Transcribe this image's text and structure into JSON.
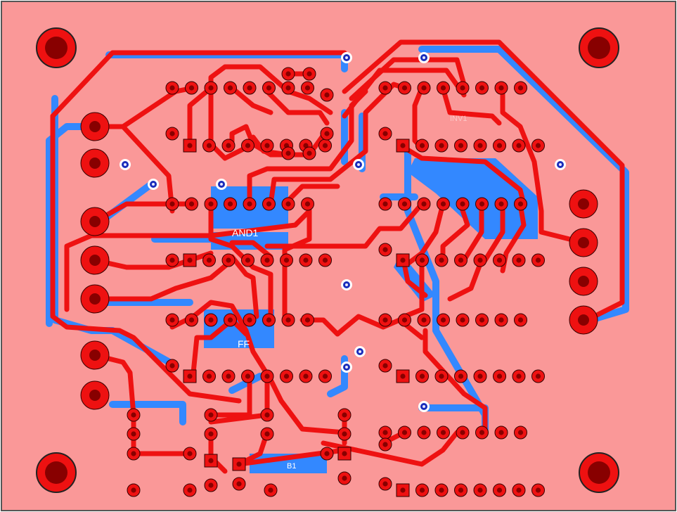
{
  "board": {
    "labels": [
      {
        "id": "u-and1",
        "text": "AND1"
      },
      {
        "id": "u-ff",
        "text": "FF"
      },
      {
        "id": "b1",
        "text": "B1"
      },
      {
        "id": "u-top",
        "text": "INV1"
      }
    ]
  },
  "colors": {
    "board": "#fa9898",
    "trace_top": "#ee1111",
    "trace_bottom": "#3388ff",
    "pad": "#ee1111",
    "pad_hole": "#880000",
    "via_ring": "#1a2dbb",
    "via_hole": "#e8e8ff",
    "silk": "#ffffff",
    "edge": "#555555"
  }
}
